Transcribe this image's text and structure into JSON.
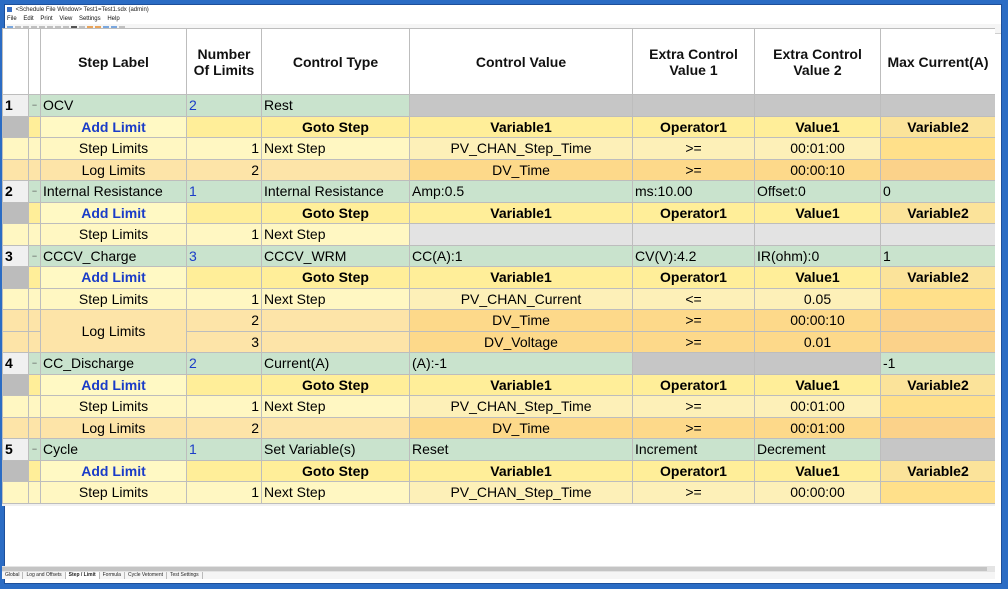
{
  "window": {
    "title": "<Schedule File Window> Test1=Test1.sdx (admin)"
  },
  "menu": [
    "File",
    "Edit",
    "Print",
    "View",
    "Settings",
    "Help"
  ],
  "toolbar_icons": [
    "save-icon",
    "copy-icon",
    "paste-icon",
    "undo-icon",
    "redo-icon",
    "cut-icon",
    "find-icon",
    "zoom-icon",
    "bold-icon",
    "italic-icon",
    "grid-icon",
    "color-icon",
    "insert-icon",
    "delete-icon",
    "help-icon"
  ],
  "columns": {
    "step_label": "Step Label",
    "num_limits": "Number Of Limits",
    "control_type": "Control Type",
    "control_value": "Control Value",
    "extra1": "Extra Control Value 1",
    "extra2": "Extra Control Value 2",
    "max_current": "Max Current(A)"
  },
  "limit_header": {
    "add_limit": "Add Limit",
    "goto_step": "Goto Step",
    "variable1": "Variable1",
    "operator1": "Operator1",
    "value1": "Value1",
    "variable2": "Variable2"
  },
  "steps": [
    {
      "num": "1",
      "label": "OCV",
      "limits": "2",
      "control_type": "Rest",
      "control_value": "",
      "extra1": "",
      "extra2": "",
      "max_current": "",
      "step_limits": [
        {
          "label": "Step Limits",
          "n": "1",
          "goto": "Next Step",
          "var1": "PV_CHAN_Step_Time",
          "op": ">=",
          "val": "00:01:00"
        }
      ],
      "log_limits": [
        {
          "label": "Log Limits",
          "n": "2",
          "goto": "",
          "var1": "DV_Time",
          "op": ">=",
          "val": "00:00:10"
        }
      ]
    },
    {
      "num": "2",
      "label": "Internal Resistance",
      "limits": "1",
      "control_type": "Internal Resistance",
      "control_value": "Amp:0.5",
      "extra1": "ms:10.00",
      "extra2": "Offset:0",
      "max_current": "0",
      "step_limits": [
        {
          "label": "Step Limits",
          "n": "1",
          "goto": "Next Step",
          "var1": "",
          "op": "",
          "val": ""
        }
      ],
      "log_limits": []
    },
    {
      "num": "3",
      "label": "CCCV_Charge",
      "limits": "3",
      "control_type": "CCCV_WRM",
      "control_value": "CC(A):1",
      "extra1": "CV(V):4.2",
      "extra2": "IR(ohm):0",
      "max_current": "1",
      "step_limits": [
        {
          "label": "Step Limits",
          "n": "1",
          "goto": "Next Step",
          "var1": "PV_CHAN_Current",
          "op": "<=",
          "val": "0.05"
        }
      ],
      "log_limits": [
        {
          "label": "Log Limits",
          "n": "2",
          "goto": "",
          "var1": "DV_Time",
          "op": ">=",
          "val": "00:00:10"
        },
        {
          "label": "",
          "n": "3",
          "goto": "",
          "var1": "DV_Voltage",
          "op": ">=",
          "val": "0.01"
        }
      ]
    },
    {
      "num": "4",
      "label": "CC_Discharge",
      "limits": "2",
      "control_type": "Current(A)",
      "control_value": "(A):-1",
      "extra1": "",
      "extra2": "",
      "max_current": "-1",
      "step_limits": [
        {
          "label": "Step Limits",
          "n": "1",
          "goto": "Next Step",
          "var1": "PV_CHAN_Step_Time",
          "op": ">=",
          "val": "00:01:00"
        }
      ],
      "log_limits": [
        {
          "label": "Log Limits",
          "n": "2",
          "goto": "",
          "var1": "DV_Time",
          "op": ">=",
          "val": "00:01:00"
        }
      ]
    },
    {
      "num": "5",
      "label": "Cycle",
      "limits": "1",
      "control_type": "Set Variable(s)",
      "control_value": "Reset",
      "extra1": "Increment",
      "extra2": "Decrement",
      "max_current": "",
      "step_limits": [
        {
          "label": "Step Limits",
          "n": "1",
          "goto": "Next Step",
          "var1": "PV_CHAN_Step_Time",
          "op": ">=",
          "val": "00:00:00"
        }
      ],
      "log_limits": []
    }
  ],
  "tabs": [
    "Global",
    "Log and Offsets",
    "Step / Limit",
    "Formula",
    "Cycle Vetoment",
    "Test Settings"
  ],
  "active_tab": "Step / Limit",
  "colors": {
    "step_row": "#c9e3cd",
    "limit_header": "#ffee99",
    "step_limit_row": "#fff7c2",
    "log_limit_row": "#fde4a8",
    "link_blue": "#1a3cc8"
  }
}
